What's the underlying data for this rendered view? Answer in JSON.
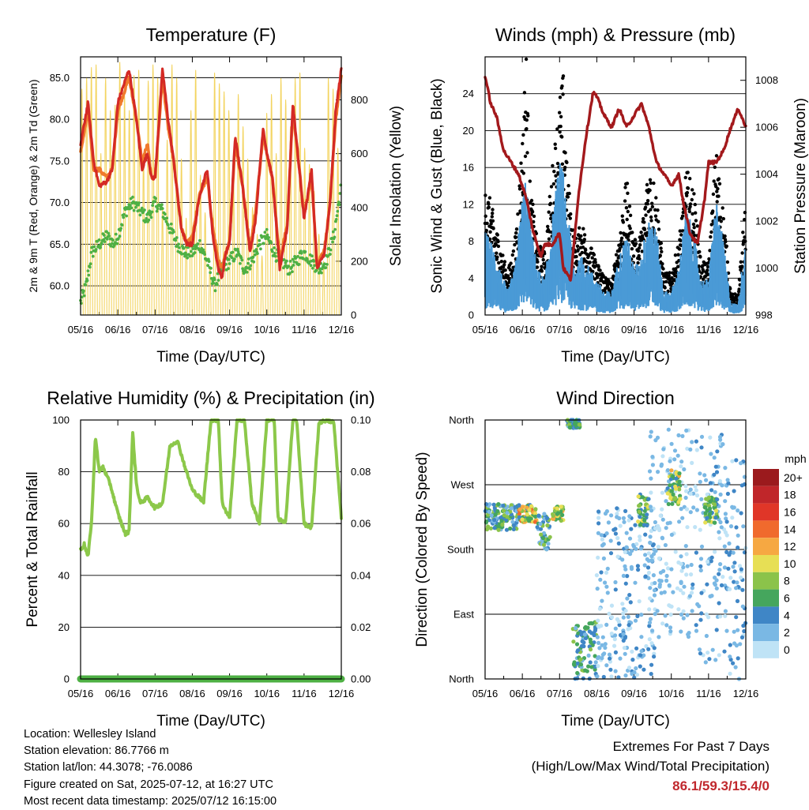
{
  "chart_data": [
    {
      "type": "line",
      "title": "Temperature (F)",
      "xlabel": "Time (Day/UTC)",
      "ylabel": "2m & 9m T (Red, Orange) & 2m Td (Green)",
      "y2label": "Solar Insolation (Yellow)",
      "x_ticks": [
        "05/16",
        "06/16",
        "07/16",
        "08/16",
        "09/16",
        "10/16",
        "11/16",
        "12/16"
      ],
      "ylim": [
        56.5,
        87.5
      ],
      "y_ticks": [
        "60.0",
        "65.0",
        "70.0",
        "75.0",
        "80.0",
        "85.0"
      ],
      "y2lim": [
        0,
        960
      ],
      "y2_ticks": [
        "0",
        "200",
        "400",
        "600",
        "800"
      ],
      "grid": true,
      "colors": {
        "t2m": "#d42a25",
        "t9m": "#f07a2c",
        "td2m": "#4eb044",
        "solar": "#f3d460"
      },
      "series": [
        {
          "key": "t2m",
          "x": [
            0,
            0.2,
            0.35,
            0.5,
            0.7,
            0.85,
            1.0,
            1.3,
            1.5,
            1.65,
            1.8,
            1.9,
            2.0,
            2.2,
            2.35,
            2.5,
            2.7,
            2.85,
            3.0,
            3.2,
            3.4,
            3.55,
            3.7,
            3.8,
            3.9,
            4.0,
            4.15,
            4.35,
            4.55,
            4.7,
            4.9,
            5.0,
            5.15,
            5.35,
            5.55,
            5.7,
            5.85,
            6.0,
            6.2,
            6.35,
            6.55,
            6.7,
            6.85,
            7.0
          ],
          "y": [
            77,
            82,
            75,
            72,
            72.5,
            74,
            82,
            86,
            80,
            74,
            76,
            73,
            73,
            86,
            80,
            75,
            67,
            65,
            65,
            71,
            74,
            66,
            62,
            61,
            64,
            65,
            78,
            72,
            64,
            68,
            79,
            76,
            73,
            62,
            67,
            82,
            75,
            68,
            74,
            62,
            64,
            70,
            81,
            86
          ]
        },
        {
          "key": "t9m",
          "x": [
            0,
            0.2,
            0.35,
            0.5,
            0.7,
            0.85,
            1.0,
            1.3,
            1.5,
            1.65,
            1.8,
            1.9,
            2.0,
            2.2,
            2.35,
            2.5,
            2.7,
            2.85,
            3.0,
            3.2,
            3.4,
            3.55,
            3.7,
            3.8,
            3.9,
            4.0,
            4.15,
            4.35,
            4.55,
            4.7,
            4.9,
            5.0,
            5.15,
            5.35,
            5.55,
            5.7,
            5.85,
            6.0,
            6.2,
            6.35,
            6.55,
            6.7,
            6.85,
            7.0
          ],
          "y": [
            76,
            81,
            74,
            74,
            73,
            74,
            81,
            85,
            80,
            75,
            77,
            73,
            73,
            85,
            79,
            75,
            67,
            65,
            66,
            71,
            73,
            67,
            63,
            62,
            64,
            65.5,
            77,
            72,
            64.5,
            69,
            78,
            76,
            73,
            63,
            67.5,
            81,
            75,
            68.5,
            73,
            62.5,
            64.5,
            70,
            80,
            85
          ]
        },
        {
          "key": "td2m",
          "x": [
            0,
            0.15,
            0.3,
            0.5,
            0.7,
            0.9,
            1.0,
            1.2,
            1.4,
            1.6,
            1.8,
            2.0,
            2.2,
            2.4,
            2.6,
            2.8,
            3.0,
            3.2,
            3.4,
            3.6,
            3.8,
            4.0,
            4.2,
            4.4,
            4.6,
            4.8,
            5.0,
            5.2,
            5.4,
            5.6,
            5.8,
            6.0,
            6.2,
            6.4,
            6.6,
            6.8,
            7.0
          ],
          "y": [
            58,
            60,
            64,
            65,
            66,
            65,
            66,
            69,
            70,
            69,
            68,
            70,
            69,
            67,
            65,
            64,
            64,
            65,
            63,
            60,
            62,
            63,
            64,
            62,
            63,
            65,
            66,
            64,
            63,
            62,
            63,
            64,
            63,
            62,
            63,
            66,
            72
          ]
        },
        {
          "key": "solar",
          "peaks": [
            840,
            880,
            920,
            930,
            600,
            880,
            760,
            780,
            940,
            820,
            760,
            890,
            910,
            600,
            870,
            930,
            880,
            400,
            650,
            930,
            880,
            580,
            360,
            760,
            910,
            520,
            380,
            180,
            900,
            860,
            830,
            760,
            500,
            820,
            700,
            580,
            400,
            300,
            220,
            750,
            820,
            600,
            880,
            800,
            700,
            880,
            900,
            620,
            560,
            460,
            300,
            200,
            880,
            840,
            620
          ]
        }
      ]
    },
    {
      "type": "scatter",
      "title": "Winds (mph) & Pressure (mb)",
      "xlabel": "Time (Day/UTC)",
      "ylabel": "Sonic Wind & Gust (Blue, Black)",
      "y2label": "Station Pressure (Maroon)",
      "x_ticks": [
        "05/16",
        "06/16",
        "07/16",
        "08/16",
        "09/16",
        "10/16",
        "11/16",
        "12/16"
      ],
      "ylim": [
        0,
        28
      ],
      "y_ticks": [
        "0",
        "4",
        "8",
        "12",
        "16",
        "20",
        "24"
      ],
      "y2lim": [
        998,
        1009
      ],
      "y2_ticks": [
        "998",
        "1000",
        "1002",
        "1004",
        "1006",
        "1008"
      ],
      "grid": true,
      "colors": {
        "wind": "#4a9ad6",
        "gust": "#000000",
        "pressure": "#a3191c"
      },
      "series": [
        {
          "key": "wind",
          "x": [
            0,
            0.2,
            0.4,
            0.6,
            0.8,
            1.0,
            1.1,
            1.2,
            1.4,
            1.6,
            1.8,
            2.0,
            2.1,
            2.2,
            2.4,
            2.6,
            2.8,
            3.0,
            3.2,
            3.4,
            3.6,
            3.8,
            4.0,
            4.2,
            4.4,
            4.6,
            4.8,
            5.0,
            5.2,
            5.4,
            5.6,
            5.8,
            6.0,
            6.2,
            6.4,
            6.6,
            6.8,
            7.0
          ],
          "y": [
            7,
            6,
            4,
            2,
            4,
            10,
            12,
            8,
            4,
            3,
            8,
            13,
            12,
            9,
            4,
            5,
            4,
            3,
            2,
            2,
            5,
            7,
            4,
            5,
            9,
            7,
            2,
            2,
            4,
            9,
            7,
            3,
            3,
            10,
            6,
            1,
            1,
            7
          ]
        },
        {
          "key": "gust",
          "x": [
            0,
            0.2,
            0.4,
            0.6,
            0.8,
            1.0,
            1.1,
            1.2,
            1.4,
            1.6,
            1.8,
            2.0,
            2.1,
            2.2,
            2.4,
            2.6,
            2.8,
            3.0,
            3.2,
            3.4,
            3.6,
            3.8,
            4.0,
            4.2,
            4.4,
            4.6,
            4.8,
            5.0,
            5.2,
            5.4,
            5.6,
            5.8,
            6.0,
            6.2,
            6.4,
            6.6,
            6.8,
            7.0
          ],
          "y": [
            13,
            10,
            7,
            4,
            7,
            17,
            26,
            13,
            7,
            6,
            14,
            21,
            23,
            14,
            7,
            9,
            7,
            5,
            4,
            3,
            8,
            13,
            7,
            8,
            15,
            12,
            4,
            4,
            7,
            14,
            12,
            5,
            5,
            16,
            10,
            2,
            2,
            12
          ]
        },
        {
          "key": "pressure",
          "x": [
            0,
            0.15,
            0.3,
            0.5,
            0.7,
            0.9,
            1.1,
            1.3,
            1.5,
            1.6,
            1.8,
            2.0,
            2.1,
            2.3,
            2.5,
            2.7,
            2.9,
            3.0,
            3.2,
            3.4,
            3.6,
            3.8,
            4.0,
            4.2,
            4.4,
            4.6,
            4.8,
            5.0,
            5.2,
            5.3,
            5.5,
            5.7,
            5.9,
            6.0,
            6.2,
            6.4,
            6.6,
            6.8,
            7.0
          ],
          "y": [
            1008.2,
            1007,
            1006.5,
            1005,
            1004.5,
            1004,
            1003,
            1001.5,
            1000.5,
            1001,
            1001,
            1001.5,
            1000,
            999.5,
            1003,
            1005.5,
            1007.5,
            1007.3,
            1006.5,
            1006,
            1006.8,
            1006,
            1006.5,
            1007,
            1006,
            1004.5,
            1004,
            1003.5,
            1004,
            1003,
            1001.5,
            1001,
            1003,
            1004.5,
            1004.5,
            1005,
            1006,
            1006.8,
            1006
          ]
        }
      ]
    },
    {
      "type": "line",
      "title": "Relative Humidity (%) & Precipitation (in)",
      "xlabel": "Time (Day/UTC)",
      "ylabel": "Percent & Total Rainfall",
      "x_ticks": [
        "05/16",
        "06/16",
        "07/16",
        "08/16",
        "09/16",
        "10/16",
        "11/16",
        "12/16"
      ],
      "ylim": [
        0,
        100
      ],
      "y_ticks": [
        "0",
        "20",
        "40",
        "60",
        "80",
        "100"
      ],
      "y2lim": [
        0,
        0.1
      ],
      "y2_ticks": [
        "0.00",
        "0.02",
        "0.04",
        "0.06",
        "0.08",
        "0.10"
      ],
      "grid": true,
      "colors": {
        "rh": "#8cc84a",
        "precip": "#4eb044"
      },
      "series": [
        {
          "key": "rh",
          "x": [
            0,
            0.1,
            0.2,
            0.3,
            0.4,
            0.5,
            0.6,
            0.8,
            1.0,
            1.2,
            1.3,
            1.4,
            1.5,
            1.6,
            1.8,
            2.0,
            2.2,
            2.4,
            2.6,
            2.8,
            3.0,
            3.2,
            3.3,
            3.5,
            3.7,
            3.8,
            4.0,
            4.2,
            4.4,
            4.6,
            4.8,
            5.0,
            5.2,
            5.3,
            5.5,
            5.7,
            5.8,
            6.0,
            6.2,
            6.4,
            6.6,
            6.8,
            7.0
          ],
          "y": [
            50,
            52,
            47,
            62,
            94,
            80,
            82,
            75,
            64,
            56,
            57,
            95,
            75,
            68,
            70,
            66,
            68,
            90,
            92,
            82,
            73,
            70,
            68,
            100,
            100,
            68,
            62,
            100,
            100,
            68,
            60,
            100,
            100,
            62,
            60,
            100,
            100,
            60,
            58,
            99,
            100,
            99,
            62
          ]
        },
        {
          "key": "precip",
          "x": [
            0,
            7
          ],
          "y": [
            0,
            0
          ]
        }
      ]
    },
    {
      "type": "scatter",
      "title": "Wind Direction",
      "xlabel": "Time (Day/UTC)",
      "ylabel": "Direction (Colored By Speed)",
      "x_ticks": [
        "05/16",
        "06/16",
        "07/16",
        "08/16",
        "09/16",
        "10/16",
        "11/16",
        "12/16"
      ],
      "ylim": [
        0,
        360
      ],
      "y_ticks": [
        "North",
        "East",
        "South",
        "West",
        "North"
      ],
      "grid": true,
      "legend": {
        "title": "mph",
        "labels": [
          "20+",
          "18",
          "16",
          "14",
          "12",
          "10",
          "8",
          "6",
          "4",
          "2",
          "0"
        ],
        "colors": [
          "#9b1a1d",
          "#c0262a",
          "#e03628",
          "#f06a2d",
          "#f6a842",
          "#e7df55",
          "#8bc34a",
          "#45a65d",
          "#3f86c6",
          "#7ab8e4",
          "#bfe3f6"
        ],
        "placement": "right"
      },
      "clusters": [
        {
          "x0": 0.0,
          "x1": 0.9,
          "dir": 225,
          "spread": 18,
          "spd": [
            2,
            9
          ]
        },
        {
          "x0": 0.9,
          "x1": 1.4,
          "dir": 230,
          "spread": 12,
          "spd": [
            4,
            14
          ]
        },
        {
          "x0": 1.4,
          "x1": 1.75,
          "dir": 205,
          "spread": 25,
          "spd": [
            2,
            8
          ]
        },
        {
          "x0": 1.8,
          "x1": 2.1,
          "dir": 230,
          "spread": 10,
          "spd": [
            6,
            13
          ]
        },
        {
          "x0": 2.2,
          "x1": 2.55,
          "dir": 355,
          "spread": 6,
          "spd": [
            2,
            8
          ]
        },
        {
          "x0": 2.35,
          "x1": 3.0,
          "dir": 40,
          "spread": 40,
          "spd": [
            2,
            8
          ]
        },
        {
          "x0": 3.0,
          "x1": 4.6,
          "dir": 120,
          "spread": 120,
          "spd": [
            0,
            4
          ]
        },
        {
          "x0": 4.1,
          "x1": 4.4,
          "dir": 235,
          "spread": 22,
          "spd": [
            4,
            10
          ]
        },
        {
          "x0": 4.4,
          "x1": 5.5,
          "dir": 200,
          "spread": 150,
          "spd": [
            0,
            3
          ]
        },
        {
          "x0": 4.9,
          "x1": 5.25,
          "dir": 265,
          "spread": 25,
          "spd": [
            4,
            12
          ]
        },
        {
          "x0": 5.5,
          "x1": 6.5,
          "dir": 180,
          "spread": 160,
          "spd": [
            0,
            4
          ]
        },
        {
          "x0": 5.9,
          "x1": 6.25,
          "dir": 235,
          "spread": 18,
          "spd": [
            4,
            10
          ]
        },
        {
          "x0": 6.5,
          "x1": 7.0,
          "dir": 150,
          "spread": 160,
          "spd": [
            0,
            5
          ]
        }
      ]
    }
  ],
  "info": {
    "location": "Location: Wellesley Island",
    "elevation": "Station elevation: 86.7766 m",
    "latlon": "Station lat/lon: 44.3078; -76.0086",
    "created": "Figure created on Sat, 2025-07-12, at 16:27 UTC",
    "latest": "Most recent data timestamp: 2025/07/12 16:15:00"
  },
  "extremes": {
    "line1": "Extremes For Past 7 Days",
    "line2": "(High/Low/Max Wind/Total Precipitation)",
    "values": "86.1/59.3/15.4/0"
  }
}
